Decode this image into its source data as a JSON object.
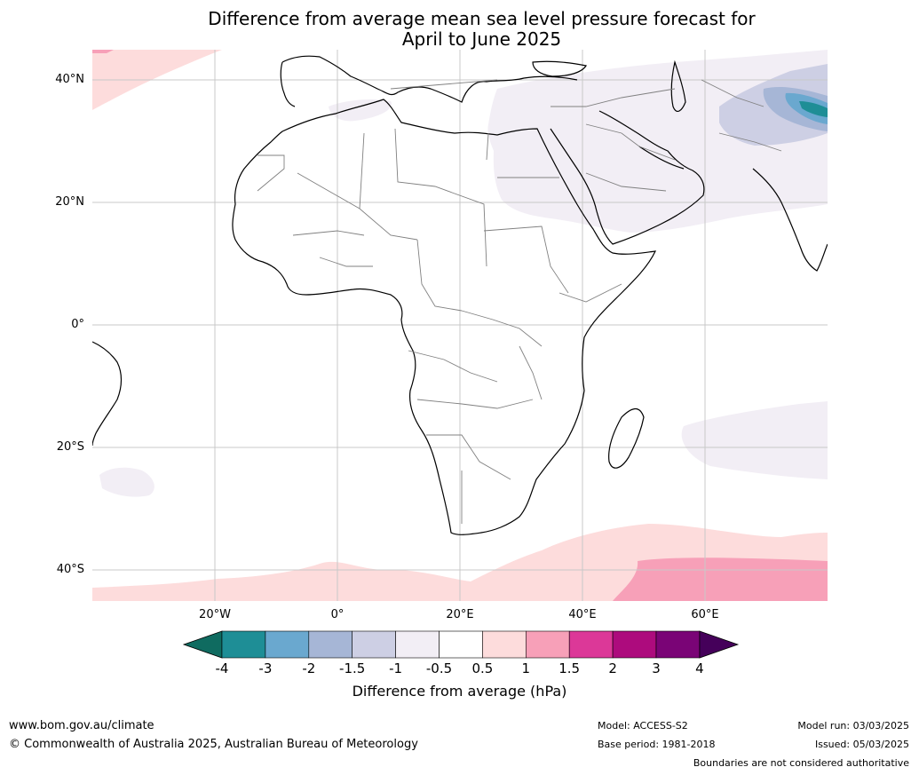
{
  "title": {
    "line1": "Difference from average mean sea level pressure forecast for",
    "line2": "April to June 2025"
  },
  "map": {
    "lat_labels": [
      "40°N",
      "20°N",
      "0°",
      "20°S",
      "40°S"
    ],
    "lon_labels": [
      "20°W",
      "0°",
      "20°E",
      "40°E",
      "60°E"
    ],
    "extent": {
      "lon": [
        -40,
        80
      ],
      "lat": [
        -45,
        45
      ]
    }
  },
  "colorbar": {
    "title": "Difference from average (hPa)",
    "ticks": [
      "-4",
      "-3",
      "-2",
      "-1.5",
      "-1",
      "-0.5",
      "0.5",
      "1",
      "1.5",
      "2",
      "3",
      "4"
    ],
    "colors": [
      "#0f6b60",
      "#1e8e96",
      "#6aa8cf",
      "#a6b6d6",
      "#cdcfe4",
      "#f2eef5",
      "#ffffff",
      "#fddcdc",
      "#f7a0b8",
      "#dc3898",
      "#ad0b7d",
      "#7a0476",
      "#45005a"
    ]
  },
  "footer": {
    "url": "www.bom.gov.au/climate",
    "copyright": "© Commonwealth of Australia 2025, Australian Bureau of Meteorology",
    "model": "Model: ACCESS-S2",
    "base_period": "Base period: 1981-2018",
    "model_run": "Model run: 03/03/2025",
    "issued": "Issued: 05/03/2025",
    "disclaimer": "Boundaries are not considered authoritative"
  }
}
